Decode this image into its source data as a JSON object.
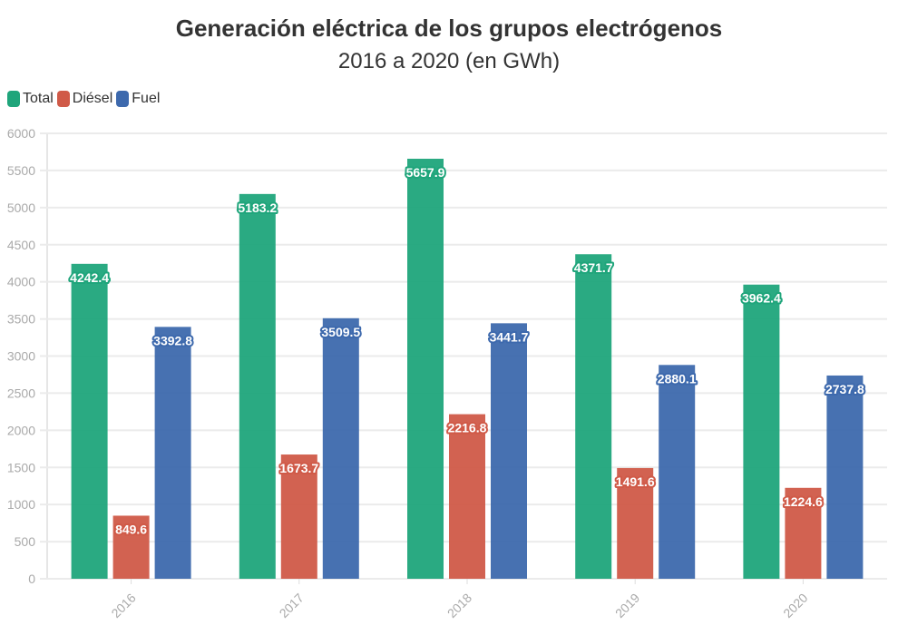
{
  "chart_data": {
    "type": "bar",
    "title": "Generación eléctrica de los grupos electrógenos",
    "subtitle": "2016 a 2020 (en GWh)",
    "categories": [
      "2016",
      "2017",
      "2018",
      "2019",
      "2020"
    ],
    "series": [
      {
        "name": "Total",
        "color": "#1fa57b",
        "values": [
          4242.4,
          5183.2,
          5657.9,
          4371.7,
          3962.4
        ]
      },
      {
        "name": "Diésel",
        "color": "#d05a48",
        "values": [
          849.6,
          1673.7,
          2216.8,
          1491.6,
          1224.6
        ]
      },
      {
        "name": "Fuel",
        "color": "#3d69ad",
        "values": [
          3392.8,
          3509.5,
          3441.7,
          2880.1,
          2737.8
        ]
      }
    ],
    "ylim": [
      0,
      6000
    ],
    "yticks": [
      0,
      500,
      1000,
      1500,
      2000,
      2500,
      3000,
      3500,
      4000,
      4500,
      5000,
      5500,
      6000
    ],
    "grid": true,
    "legend": "top-left"
  }
}
